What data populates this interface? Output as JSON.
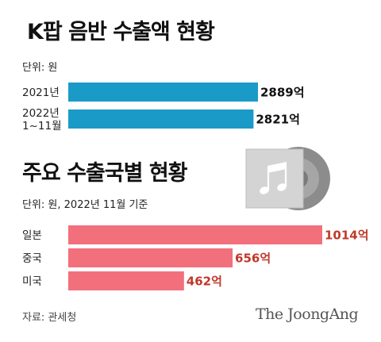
{
  "title_top": "K팝 음반 수출액 현황",
  "unit_top": "단위: 원",
  "title_bottom": "주요 수출국별 현황",
  "unit_bottom": "단위: 원, 2022년 11월 기준",
  "source": "자료: 관세청",
  "brand": "The JoongAng",
  "icons": {
    "album": "music-cd-icon"
  },
  "colors": {
    "bar_top": "#1a9ac7",
    "bar_bottom": "#f26f7c",
    "value_bottom": "#c0392b"
  },
  "chart_data": [
    {
      "type": "bar",
      "orientation": "horizontal",
      "title": "K팝 음반 수출액 현황",
      "unit": "억 원",
      "categories": [
        "2021년",
        "2022년 1~11월"
      ],
      "category_lines": [
        [
          "2021년"
        ],
        [
          "2022년",
          "1~11월"
        ]
      ],
      "values": [
        2889,
        2821
      ],
      "value_labels": [
        "2889억",
        "2821억"
      ]
    },
    {
      "type": "bar",
      "orientation": "horizontal",
      "title": "주요 수출국별 현황",
      "unit": "억 원",
      "categories": [
        "일본",
        "중국",
        "미국"
      ],
      "category_lines": [
        [
          "일본"
        ],
        [
          "중국"
        ],
        [
          "미국"
        ]
      ],
      "values": [
        1014,
        656,
        462
      ],
      "value_labels": [
        "1014억",
        "656억",
        "462억"
      ]
    }
  ]
}
